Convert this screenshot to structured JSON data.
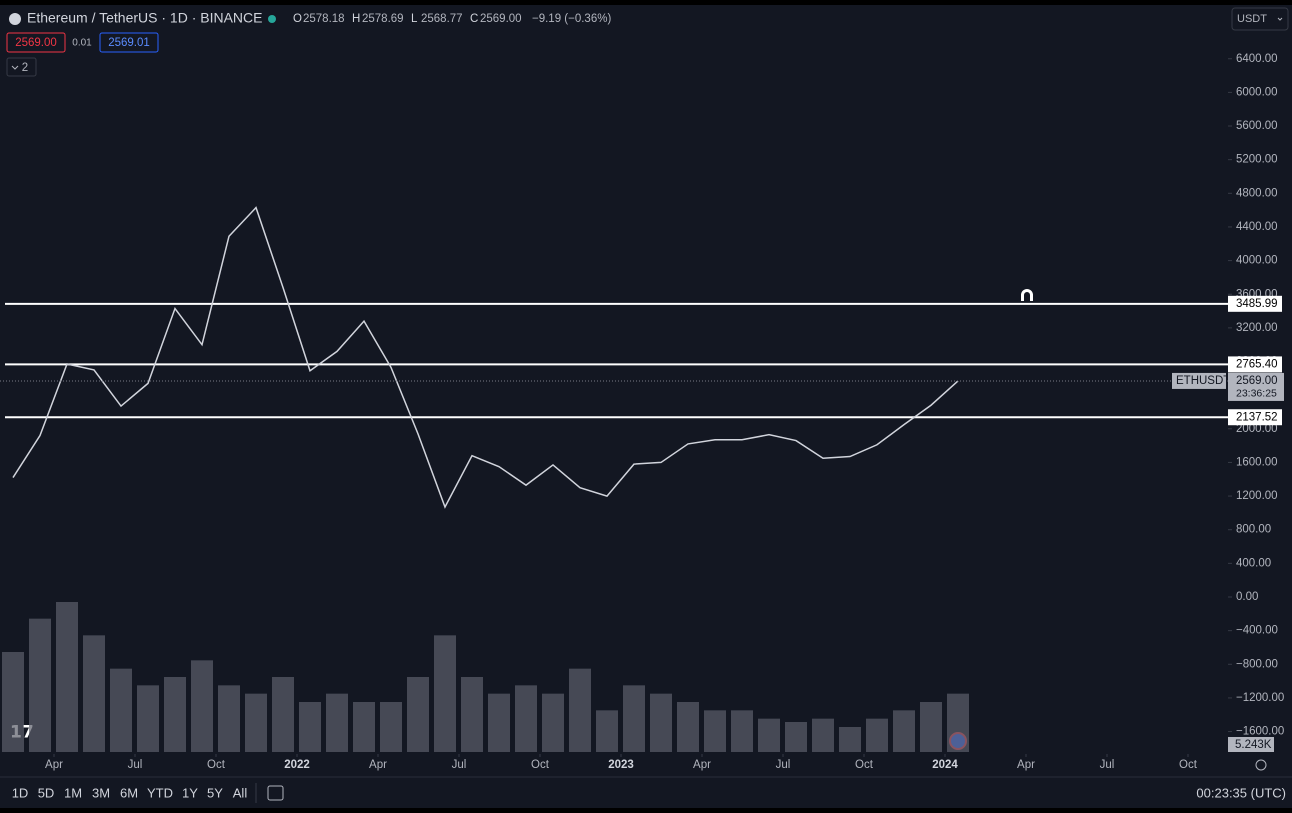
{
  "header": {
    "symbol": "Ethereum / TetherUS · 1D · BINANCE",
    "ohlc": [
      {
        "key": "O",
        "value": "2578.18"
      },
      {
        "key": "H",
        "value": "2578.69"
      },
      {
        "key": "L",
        "value": "2568.77"
      },
      {
        "key": "C",
        "value": "2569.00"
      }
    ],
    "change": "−9.19 (−0.36%)",
    "bid": "2569.00",
    "spread": "0.01",
    "ask": "2569.01",
    "indicators": "2",
    "currency": "USDT"
  },
  "chart_data": {
    "type": "line",
    "x": [
      "2021-02",
      "2021-03",
      "2021-04",
      "2021-05",
      "2021-06",
      "2021-07",
      "2021-08",
      "2021-09",
      "2021-10",
      "2021-11",
      "2021-12",
      "2022-01",
      "2022-02",
      "2022-03",
      "2022-04",
      "2022-05",
      "2022-06",
      "2022-07",
      "2022-08",
      "2022-09",
      "2022-10",
      "2022-11",
      "2022-12",
      "2023-01",
      "2023-02",
      "2023-03",
      "2023-04",
      "2023-05",
      "2023-06",
      "2023-07",
      "2023-08",
      "2023-09",
      "2023-10",
      "2023-11",
      "2023-12",
      "2024-01"
    ],
    "series": [
      {
        "name": "ETHUSDT",
        "color": "#d1d4dc",
        "values": [
          1420,
          1920,
          2770,
          2700,
          2270,
          2540,
          3430,
          3000,
          4290,
          4630,
          3680,
          2690,
          2920,
          3280,
          2730,
          1940,
          1070,
          1680,
          1550,
          1330,
          1570,
          1300,
          1200,
          1580,
          1600,
          1820,
          1870,
          1870,
          1930,
          1860,
          1650,
          1670,
          1810,
          2050,
          2280,
          2569
        ]
      }
    ],
    "volume": {
      "color": "#5d606b",
      "values": [
        600,
        800,
        900,
        700,
        500,
        400,
        450,
        550,
        400,
        350,
        450,
        300,
        350,
        300,
        300,
        450,
        700,
        450,
        350,
        400,
        350,
        500,
        250,
        400,
        350,
        300,
        250,
        250,
        200,
        180,
        200,
        150,
        200,
        250,
        300,
        350
      ],
      "label": "5.243K"
    },
    "vlim": [
      0,
      1200
    ],
    "ylim": [
      -1843,
      7039
    ],
    "yticks": [
      {
        "value": 6400,
        "label": "6400.00"
      },
      {
        "value": 6000,
        "label": "6000.00"
      },
      {
        "value": 5600,
        "label": "5600.00"
      },
      {
        "value": 5200,
        "label": "5200.00"
      },
      {
        "value": 4800,
        "label": "4800.00"
      },
      {
        "value": 4400,
        "label": "4400.00"
      },
      {
        "value": 4000,
        "label": "4000.00"
      },
      {
        "value": 3600,
        "label": "3600.00"
      },
      {
        "value": 3200,
        "label": "3200.00"
      },
      {
        "value": 2800,
        "label": "2800.00"
      },
      {
        "value": 2400,
        "label": "2400.00"
      },
      {
        "value": 2000,
        "label": "2000.00"
      },
      {
        "value": 1600,
        "label": "1600.00"
      },
      {
        "value": 1200,
        "label": "1200.00"
      },
      {
        "value": 800,
        "label": "800.00"
      },
      {
        "value": 400,
        "label": "400.00"
      },
      {
        "value": 0,
        "label": "0.00"
      },
      {
        "value": -400,
        "label": "−400.00"
      },
      {
        "value": -800,
        "label": "−800.00"
      },
      {
        "value": -1200,
        "label": "−1200.00"
      },
      {
        "value": -1600,
        "label": "−1600.00"
      }
    ],
    "xticks": [
      {
        "value": "2021-04",
        "label": "Apr"
      },
      {
        "value": "2021-07",
        "label": "Jul"
      },
      {
        "value": "2021-10",
        "label": "Oct"
      },
      {
        "value": "2022-01",
        "label": "2022"
      },
      {
        "value": "2022-04",
        "label": "Apr"
      },
      {
        "value": "2022-07",
        "label": "Jul"
      },
      {
        "value": "2022-10",
        "label": "Oct"
      },
      {
        "value": "2023-01",
        "label": "2023"
      },
      {
        "value": "2023-04",
        "label": "Apr"
      },
      {
        "value": "2023-07",
        "label": "Jul"
      },
      {
        "value": "2023-10",
        "label": "Oct"
      },
      {
        "value": "2024-01",
        "label": "2024"
      },
      {
        "value": "2024-04",
        "label": "Apr"
      },
      {
        "value": "2024-07",
        "label": "Jul"
      },
      {
        "value": "2024-10",
        "label": "Oct"
      }
    ],
    "levels": [
      {
        "value": 3485.99,
        "label": "3485.99"
      },
      {
        "value": 2765.4,
        "label": "2765.40"
      },
      {
        "value": 2137.52,
        "label": "2137.52"
      }
    ],
    "last_price": {
      "value": 2569,
      "label": "2569.00",
      "countdown": "23:36:25"
    }
  },
  "footer": {
    "ranges": [
      "1D",
      "5D",
      "1M",
      "3M",
      "6M",
      "YTD",
      "1Y",
      "5Y",
      "All"
    ],
    "clock": "00:23:35 (UTC)"
  }
}
